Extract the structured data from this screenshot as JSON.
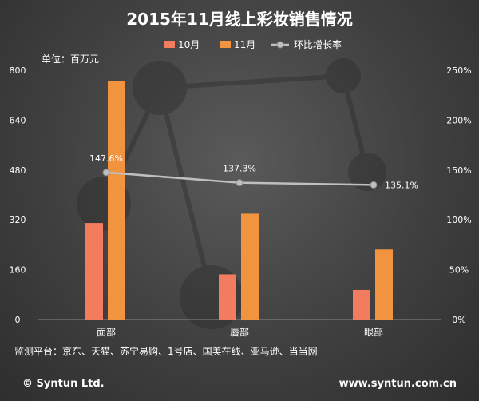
{
  "chart_data": {
    "type": "bar",
    "title": "2015年11月线上彩妆销售情况",
    "unit_label": "单位：百万元",
    "categories": [
      "面部",
      "唇部",
      "眼部"
    ],
    "series": [
      {
        "name": "10月",
        "kind": "bar",
        "axis": "left",
        "color": "#f47c5e",
        "values": [
          310,
          145,
          95
        ]
      },
      {
        "name": "11月",
        "kind": "bar",
        "axis": "left",
        "color": "#f2943f",
        "values": [
          765,
          340,
          225
        ]
      },
      {
        "name": "环比增长率",
        "kind": "line",
        "axis": "right",
        "color": "#bfbfbf",
        "values": [
          147.6,
          137.3,
          135.1
        ],
        "labels": [
          "147.6%",
          "137.3%",
          "135.1%"
        ]
      }
    ],
    "y_left": {
      "min": 0,
      "max": 800,
      "ticks": [
        "0",
        "160",
        "320",
        "480",
        "640",
        "800"
      ],
      "tick_values": [
        0,
        160,
        320,
        480,
        640,
        800
      ]
    },
    "y_right": {
      "min": 0,
      "max": 250,
      "ticks": [
        "0%",
        "50%",
        "100%",
        "150%",
        "200%",
        "250%"
      ],
      "tick_values": [
        0,
        50,
        100,
        150,
        200,
        250
      ]
    },
    "grid": false,
    "legend_position": "top-center"
  },
  "footer": {
    "platforms": "监测平台：京东、天猫、苏宁易购、1号店、国美在线、亚马逊、当当网",
    "copyright": "© Syntun Ltd.",
    "website": "www.syntun.com.cn"
  }
}
